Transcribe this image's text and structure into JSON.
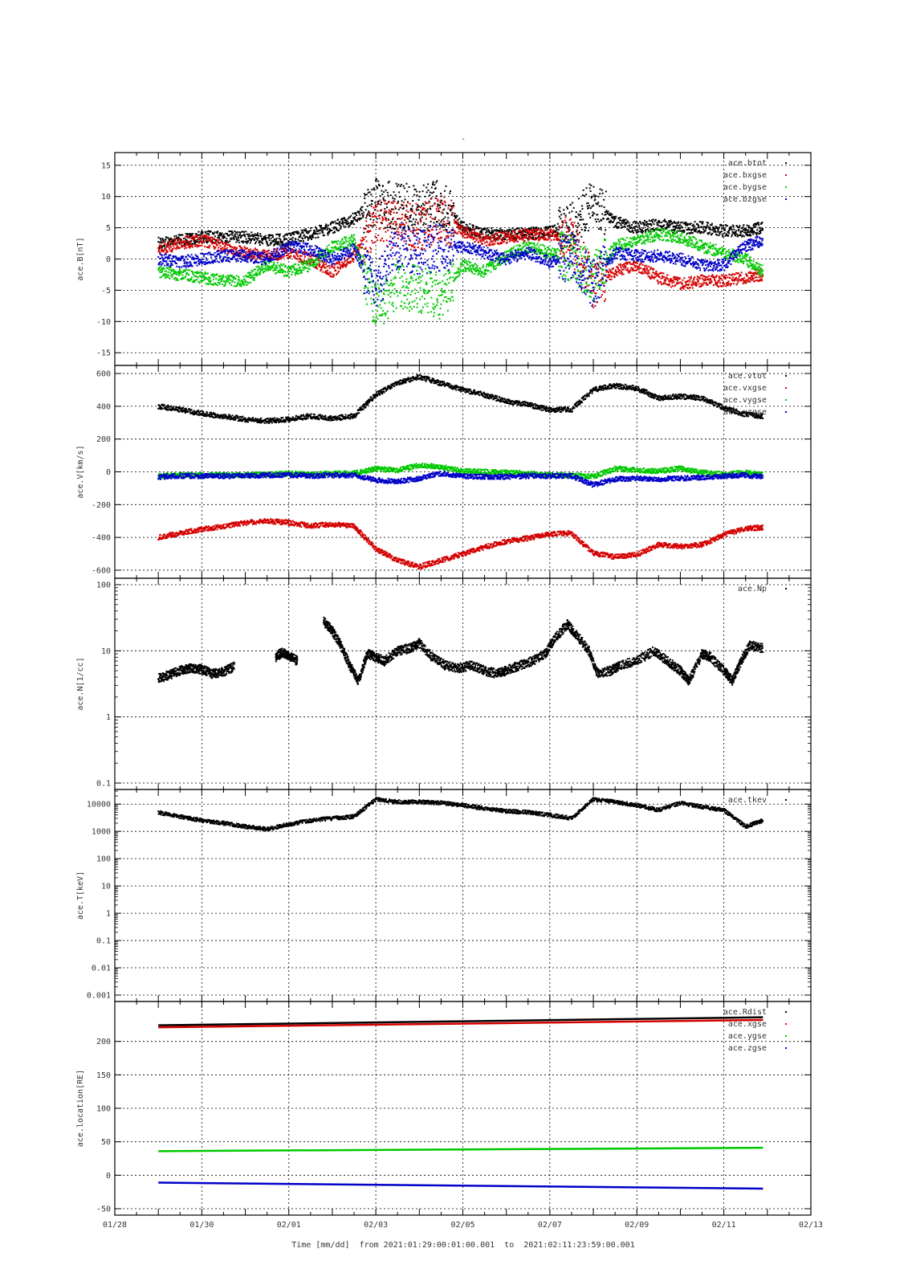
{
  "figure": {
    "title": "-",
    "xlabel": "Time [mm/dd]  from 2021:01:29:00:01:00.001  to  2021:02:11:23:59:00.001"
  },
  "chart_data": [
    {
      "type": "scatter",
      "ylabel": "ace.B[nT]",
      "yscale": "linear",
      "ylim": [
        -16,
        16
      ],
      "yticks": [
        -15,
        -10,
        -5,
        0,
        5,
        10,
        15
      ],
      "ytick_labels": [
        "-15",
        "-10",
        "-5",
        "0",
        "5",
        "10",
        "15"
      ],
      "xlim": [
        0,
        16
      ],
      "xticks": [
        0,
        2,
        4,
        6,
        8,
        10,
        12,
        14,
        16
      ],
      "xtick_labels": [
        "01/28",
        "01/30",
        "02/01",
        "02/03",
        "02/05",
        "02/07",
        "02/09",
        "02/11",
        "02/13"
      ],
      "grid": true,
      "legend_position": "top-right",
      "series": [
        {
          "name": "ace.btot",
          "color": "#000000",
          "x": [
            1,
            1.5,
            2,
            2.5,
            3,
            3.5,
            4,
            4.5,
            5,
            5.5,
            6,
            6.5,
            7,
            7.5,
            8,
            8.5,
            9,
            9.5,
            10,
            10.5,
            11,
            11.5,
            12,
            12.5,
            13,
            13.5,
            14,
            14.5,
            14.9
          ],
          "y": [
            2.5,
            3.0,
            3.5,
            3.5,
            3.5,
            3.0,
            3.2,
            4.0,
            5.0,
            6.5,
            9.0,
            8.5,
            8.0,
            9.0,
            5.0,
            4.0,
            4.0,
            4.0,
            4.5,
            5.0,
            9.0,
            6.0,
            5.0,
            5.5,
            5.0,
            5.0,
            4.5,
            4.5,
            5.0
          ]
        },
        {
          "name": "ace.bxgse",
          "color": "#d40000",
          "x": [
            1,
            1.5,
            2,
            2.5,
            3,
            3.5,
            4,
            4.5,
            5,
            5.5,
            6,
            6.5,
            7,
            7.5,
            8,
            8.5,
            9,
            9.5,
            10,
            10.5,
            11,
            11.5,
            12,
            12.5,
            13,
            13.5,
            14,
            14.5,
            14.9
          ],
          "y": [
            1.5,
            2.5,
            3.0,
            2.0,
            1.0,
            0.5,
            1.0,
            0.0,
            -2.0,
            0.5,
            6.0,
            5.5,
            5.0,
            6.5,
            4.5,
            3.0,
            3.5,
            3.8,
            4.0,
            3.0,
            -4.0,
            -2.0,
            -1.0,
            -3.0,
            -4.0,
            -3.5,
            -3.5,
            -3.0,
            -2.5
          ]
        },
        {
          "name": "ace.bygse",
          "color": "#00c800",
          "x": [
            1,
            1.5,
            2,
            2.5,
            3,
            3.5,
            4,
            4.5,
            5,
            5.5,
            6,
            6.5,
            7,
            7.5,
            8,
            8.5,
            9,
            9.5,
            10,
            10.5,
            11,
            11.5,
            12,
            12.5,
            13,
            13.5,
            14,
            14.5,
            14.9
          ],
          "y": [
            -2.0,
            -2.5,
            -3.0,
            -3.5,
            -3.5,
            -1.0,
            -2.0,
            -1.0,
            2.0,
            3.0,
            -8.0,
            -4.0,
            -5.0,
            -6.0,
            -1.0,
            -2.0,
            0.5,
            2.0,
            1.0,
            0.0,
            -3.0,
            2.0,
            3.0,
            4.0,
            3.5,
            2.0,
            1.0,
            0.0,
            -2.0
          ]
        },
        {
          "name": "ace.bzgse",
          "color": "#0000c8",
          "x": [
            1,
            1.5,
            2,
            2.5,
            3,
            3.5,
            4,
            4.5,
            5,
            5.5,
            6,
            6.5,
            7,
            7.5,
            8,
            8.5,
            9,
            9.5,
            10,
            10.5,
            11,
            11.5,
            12,
            12.5,
            13,
            13.5,
            14,
            14.5,
            14.9
          ],
          "y": [
            0.0,
            -0.5,
            0.0,
            0.5,
            0.5,
            0.0,
            2.0,
            1.5,
            0.0,
            1.5,
            -5.0,
            2.5,
            1.0,
            2.0,
            2.0,
            1.0,
            0.0,
            1.0,
            -0.5,
            0.5,
            -4.0,
            1.0,
            0.5,
            0.5,
            0.0,
            -1.0,
            -1.0,
            2.0,
            3.0
          ]
        }
      ]
    },
    {
      "type": "scatter",
      "ylabel": "ace.V[km/s]",
      "yscale": "linear",
      "ylim": [
        -610,
        610
      ],
      "yticks": [
        -600,
        -400,
        -200,
        0,
        200,
        400,
        600
      ],
      "ytick_labels": [
        "-600",
        "-400",
        "-200",
        "0",
        "200",
        "400",
        "600"
      ],
      "xlim": [
        0,
        16
      ],
      "xticks": [
        0,
        2,
        4,
        6,
        8,
        10,
        12,
        14,
        16
      ],
      "xtick_labels": [
        "01/28",
        "01/30",
        "02/01",
        "02/03",
        "02/05",
        "02/07",
        "02/09",
        "02/11",
        "02/13"
      ],
      "grid": true,
      "legend_position": "top-right",
      "series": [
        {
          "name": "ace.vtot",
          "color": "#000000",
          "x": [
            1,
            1.5,
            2,
            2.5,
            3,
            3.5,
            4,
            4.5,
            5,
            5.5,
            6,
            6.5,
            7,
            7.5,
            8,
            8.5,
            9,
            9.5,
            10,
            10.5,
            11,
            11.5,
            12,
            12.5,
            13,
            13.5,
            14,
            14.5,
            14.9
          ],
          "y": [
            400,
            380,
            355,
            340,
            320,
            310,
            320,
            340,
            325,
            340,
            470,
            540,
            580,
            540,
            500,
            470,
            430,
            410,
            380,
            380,
            500,
            525,
            510,
            450,
            460,
            450,
            390,
            350,
            340
          ]
        },
        {
          "name": "ace.vxgse",
          "color": "#d40000",
          "x": [
            1,
            1.5,
            2,
            2.5,
            3,
            3.5,
            4,
            4.5,
            5,
            5.5,
            6,
            6.5,
            7,
            7.5,
            8,
            8.5,
            9,
            9.5,
            10,
            10.5,
            11,
            11.5,
            12,
            12.5,
            13,
            13.5,
            14,
            14.5,
            14.9
          ],
          "y": [
            -400,
            -375,
            -350,
            -335,
            -310,
            -300,
            -310,
            -330,
            -320,
            -330,
            -470,
            -540,
            -580,
            -540,
            -500,
            -460,
            -425,
            -405,
            -380,
            -375,
            -495,
            -520,
            -505,
            -445,
            -455,
            -445,
            -385,
            -345,
            -340
          ]
        },
        {
          "name": "ace.vygse",
          "color": "#00c800",
          "x": [
            1,
            1.5,
            2,
            2.5,
            3,
            3.5,
            4,
            4.5,
            5,
            5.5,
            6,
            6.5,
            7,
            7.5,
            8,
            8.5,
            9,
            9.5,
            10,
            10.5,
            11,
            11.5,
            12,
            12.5,
            13,
            13.5,
            14,
            14.5,
            14.9
          ],
          "y": [
            -25,
            -20,
            -20,
            -20,
            -20,
            -15,
            -10,
            -15,
            -10,
            -10,
            20,
            10,
            40,
            30,
            5,
            0,
            -5,
            -10,
            -20,
            -20,
            -30,
            20,
            10,
            5,
            20,
            -5,
            -15,
            -5,
            -15
          ]
        },
        {
          "name": "ace.vzgse",
          "color": "#0000c8",
          "x": [
            1,
            1.5,
            2,
            2.5,
            3,
            3.5,
            4,
            4.5,
            5,
            5.5,
            6,
            6.5,
            7,
            7.5,
            8,
            8.5,
            9,
            9.5,
            10,
            10.5,
            11,
            11.5,
            12,
            12.5,
            13,
            13.5,
            14,
            14.5,
            14.9
          ],
          "y": [
            -30,
            -25,
            -25,
            -25,
            -25,
            -20,
            -20,
            -25,
            -20,
            -20,
            -50,
            -60,
            -40,
            -10,
            -25,
            -30,
            -30,
            -25,
            -25,
            -25,
            -80,
            -45,
            -40,
            -45,
            -40,
            -35,
            -25,
            -20,
            -30
          ]
        }
      ]
    },
    {
      "type": "scatter",
      "ylabel": "ace.N[1/cc]",
      "yscale": "log",
      "ylim": [
        0.1,
        100
      ],
      "yticks": [
        0.1,
        1,
        10,
        100
      ],
      "ytick_labels": [
        "0.1",
        "1",
        "10",
        "100"
      ],
      "xlim": [
        0,
        16
      ],
      "xticks": [
        0,
        2,
        4,
        6,
        8,
        10,
        12,
        14,
        16
      ],
      "xtick_labels": [
        "01/28",
        "01/30",
        "02/01",
        "02/03",
        "02/05",
        "02/07",
        "02/09",
        "02/11",
        "02/13"
      ],
      "grid": true,
      "legend_position": "top-right",
      "series": [
        {
          "name": "ace.Np",
          "color": "#000000",
          "x": [
            1,
            1.25,
            1.5,
            1.75,
            2,
            2.25,
            2.5,
            2.75,
            3.7,
            3.85,
            4.0,
            4.2,
            4.8,
            5.0,
            5.2,
            5.4,
            5.6,
            5.8,
            6.0,
            6.2,
            6.5,
            6.8,
            7.0,
            7.3,
            7.6,
            7.9,
            8.2,
            8.5,
            8.8,
            9.0,
            9.3,
            9.6,
            9.9,
            10.1,
            10.4,
            10.6,
            10.9,
            11.1,
            11.4,
            11.6,
            12.0,
            12.4,
            12.7,
            13.0,
            13.2,
            13.5,
            13.7,
            14.0,
            14.2,
            14.4,
            14.6,
            14.9
          ],
          "y": [
            3.8,
            4.3,
            5.0,
            5.5,
            5.2,
            4.5,
            4.8,
            5.8,
            8.0,
            9.5,
            8.5,
            7.0,
            28,
            20,
            12,
            6,
            3.5,
            9,
            8,
            7,
            10,
            11,
            13,
            8,
            6,
            5.5,
            6,
            5,
            4.5,
            5,
            6,
            7,
            9,
            15,
            25,
            18,
            10,
            4.5,
            5,
            6,
            7,
            10,
            7,
            5,
            3.5,
            9,
            8,
            5,
            3.5,
            7,
            12,
            11
          ]
        }
      ]
    },
    {
      "type": "scatter",
      "ylabel": "ace.T[keV]",
      "yscale": "log",
      "ylim": [
        0.001,
        20000
      ],
      "yticks": [
        0.001,
        0.01,
        0.1,
        1,
        10,
        100,
        1000,
        10000
      ],
      "ytick_labels": [
        "0.001",
        "0.01",
        "0.1",
        "1",
        "10",
        "100",
        "1000",
        "10000"
      ],
      "xlim": [
        0,
        16
      ],
      "xticks": [
        0,
        2,
        4,
        6,
        8,
        10,
        12,
        14,
        16
      ],
      "xtick_labels": [
        "01/28",
        "01/30",
        "02/01",
        "02/03",
        "02/05",
        "02/07",
        "02/09",
        "02/11",
        "02/13"
      ],
      "grid": true,
      "legend_position": "top-right",
      "series": [
        {
          "name": "ace.tkev",
          "color": "#000000",
          "x": [
            1,
            1.5,
            2,
            2.5,
            3,
            3.5,
            4,
            4.5,
            5,
            5.5,
            6,
            6.5,
            7,
            7.5,
            8,
            8.5,
            9,
            9.5,
            10,
            10.5,
            11,
            11.5,
            12,
            12.5,
            13,
            13.5,
            14,
            14.5,
            14.9
          ],
          "y": [
            5000,
            3500,
            2500,
            2000,
            1500,
            1200,
            1800,
            2500,
            3000,
            3500,
            15000,
            12000,
            12000,
            11000,
            9000,
            7000,
            5500,
            5000,
            4000,
            3000,
            15000,
            12000,
            9000,
            6000,
            11000,
            8000,
            6000,
            1500,
            2500
          ]
        }
      ]
    },
    {
      "type": "line",
      "ylabel": "ace.location[RE]",
      "yscale": "linear",
      "ylim": [
        -50,
        250
      ],
      "yticks": [
        -50,
        0,
        50,
        100,
        150,
        200
      ],
      "ytick_labels": [
        "-50",
        "0",
        "50",
        "100",
        "150",
        "200"
      ],
      "xlim": [
        0,
        16
      ],
      "xticks": [
        0,
        2,
        4,
        6,
        8,
        10,
        12,
        14,
        16
      ],
      "xtick_labels": [
        "01/28",
        "01/30",
        "02/01",
        "02/03",
        "02/05",
        "02/07",
        "02/09",
        "02/11",
        "02/13"
      ],
      "grid": true,
      "legend_position": "top-right",
      "series": [
        {
          "name": "ace.Rdist",
          "color": "#000000",
          "x": [
            1,
            14.9
          ],
          "y": [
            224,
            236
          ]
        },
        {
          "name": "ace.xgse",
          "color": "#d40000",
          "x": [
            1,
            14.9
          ],
          "y": [
            221,
            232
          ]
        },
        {
          "name": "ace.ygse",
          "color": "#00c800",
          "x": [
            1,
            14.9
          ],
          "y": [
            36,
            41
          ]
        },
        {
          "name": "ace.zgse",
          "color": "#0000c8",
          "x": [
            1,
            14.9
          ],
          "y": [
            -11,
            -20
          ]
        }
      ]
    }
  ]
}
